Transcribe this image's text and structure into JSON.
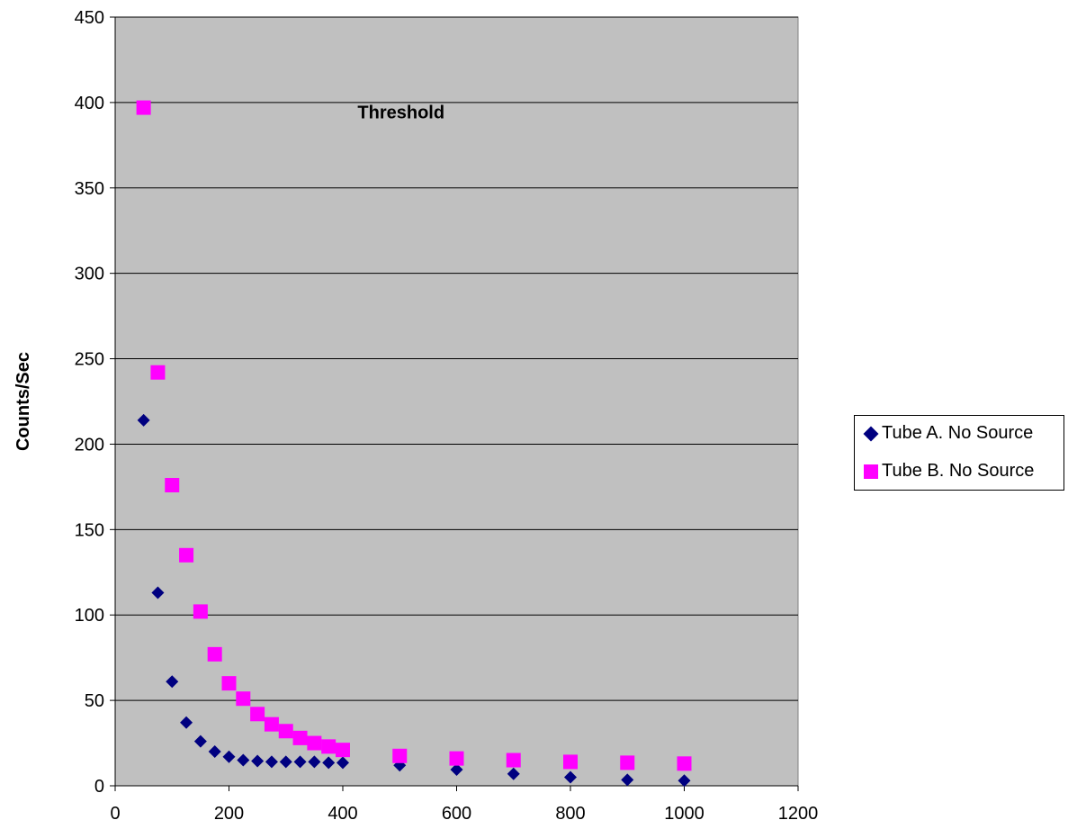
{
  "chart_data": {
    "type": "scatter",
    "title": "",
    "xlabel": "",
    "ylabel": "Counts/Sec",
    "xlim": [
      0,
      1200
    ],
    "ylim": [
      0,
      450
    ],
    "xticks": [
      0,
      200,
      400,
      600,
      800,
      1000,
      1200
    ],
    "yticks": [
      0,
      50,
      100,
      150,
      200,
      250,
      300,
      350,
      400,
      450
    ],
    "grid": "horizontal",
    "plot_background": "#c0c0c0",
    "legend_position": "right",
    "annotations": [
      {
        "text": "Threshold",
        "x": 300,
        "y": 397
      }
    ],
    "series": [
      {
        "name": "Tube A. No Source",
        "color": "#000080",
        "marker": "diamond",
        "x": [
          50,
          75,
          100,
          125,
          150,
          175,
          200,
          225,
          250,
          275,
          300,
          325,
          350,
          375,
          400,
          500,
          600,
          700,
          800,
          900,
          1000
        ],
        "y": [
          214,
          113,
          61,
          37,
          26,
          20,
          17,
          15,
          14.5,
          14,
          14,
          14,
          14,
          13.5,
          13.5,
          12,
          9.5,
          7,
          5,
          3.5,
          3
        ]
      },
      {
        "name": "Tube B. No Source",
        "color": "#ff00ff",
        "marker": "square",
        "x": [
          50,
          75,
          100,
          125,
          150,
          175,
          200,
          225,
          250,
          275,
          300,
          325,
          350,
          375,
          400,
          500,
          600,
          700,
          800,
          900,
          1000
        ],
        "y": [
          397,
          242,
          176,
          135,
          102,
          77,
          60,
          51,
          42,
          36,
          32,
          28,
          25,
          23,
          21,
          17.5,
          16,
          15,
          14,
          13.5,
          13
        ]
      }
    ]
  }
}
